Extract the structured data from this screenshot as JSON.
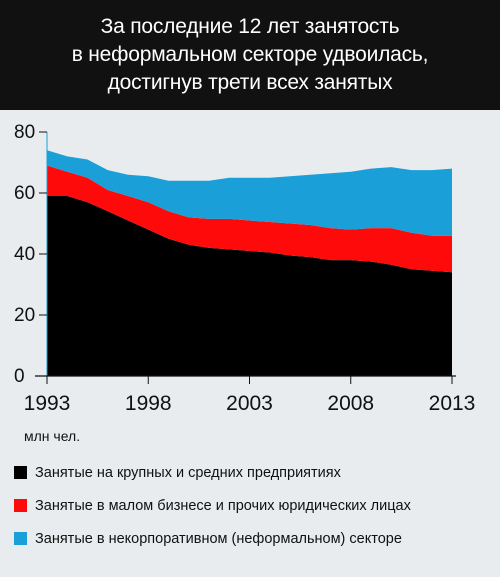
{
  "title_lines": [
    "За последние 12 лет занятость",
    "в неформальном секторе удвоилась,",
    "достигнув трети всех занятых"
  ],
  "unit_label": "млн чел.",
  "legend": [
    {
      "label": "Занятые на крупных и средних предприятиях",
      "color": "#000000"
    },
    {
      "label": "Занятые в малом бизнесе и прочих юридических лицах",
      "color": "#ff0a0a"
    },
    {
      "label": "Занятые в некорпоративном (неформальном) секторе",
      "color": "#1a9fd8"
    }
  ],
  "chart_data": {
    "type": "area",
    "stacked": true,
    "x": [
      1993,
      1994,
      1995,
      1996,
      1997,
      1998,
      1999,
      2000,
      2001,
      2002,
      2003,
      2004,
      2005,
      2006,
      2007,
      2008,
      2009,
      2010,
      2011,
      2012,
      2013
    ],
    "xticks": [
      1993,
      1998,
      2003,
      2008,
      2013
    ],
    "yticks": [
      0,
      20,
      40,
      60,
      80
    ],
    "ylim": [
      0,
      80
    ],
    "xlim": [
      1993,
      2013
    ],
    "series": [
      {
        "name": "Занятые на крупных и средних предприятиях",
        "color": "#000000",
        "values": [
          59,
          59,
          57,
          54,
          51,
          48,
          45,
          43,
          42,
          41.5,
          41,
          40.5,
          39.5,
          39,
          38,
          38,
          37.5,
          36.5,
          35,
          34.5,
          34
        ]
      },
      {
        "name": "Занятые в малом бизнесе и прочих юридических лицах",
        "color": "#ff0a0a",
        "values": [
          10,
          8,
          8,
          7,
          8,
          9,
          9,
          9,
          9.5,
          10,
          10,
          10,
          10.5,
          10.5,
          10.5,
          10,
          11,
          12,
          12,
          11.5,
          12
        ]
      },
      {
        "name": "Занятые в некорпоративном (неформальном) секторе",
        "color": "#1a9fd8",
        "values": [
          5,
          5,
          6,
          6.5,
          7,
          8.5,
          10,
          12,
          12.5,
          13.5,
          14,
          14.5,
          15.5,
          16.5,
          18,
          19,
          19.5,
          20,
          20.5,
          21.5,
          22
        ]
      }
    ],
    "grid": false
  }
}
